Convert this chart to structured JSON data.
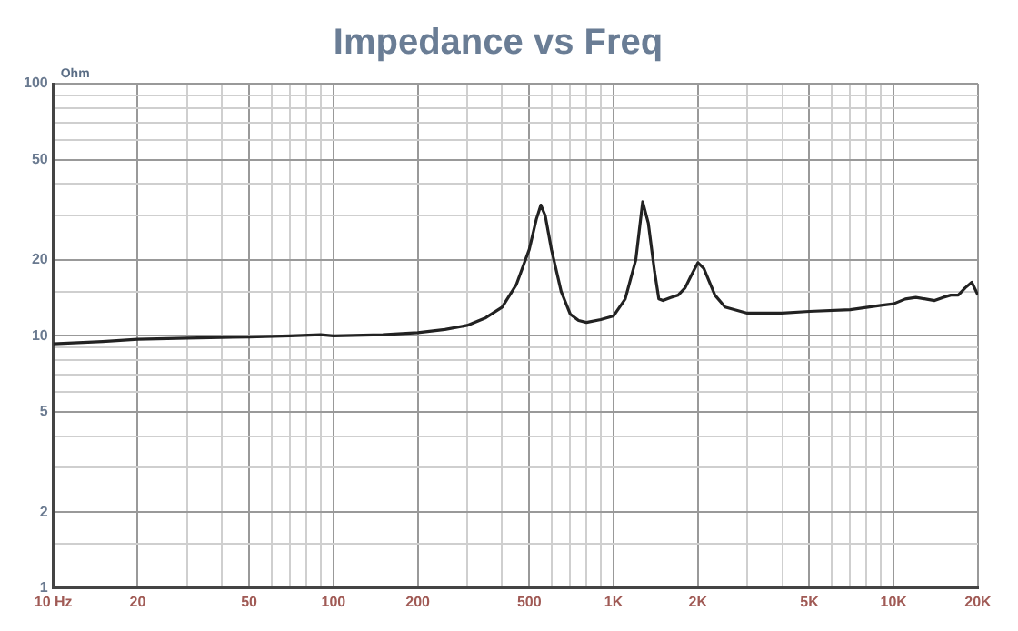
{
  "chart_data": {
    "type": "line",
    "title": "Impedance vs Freq",
    "ylabel": "Ohm",
    "log": "xy",
    "grid": true,
    "legend": false,
    "marker": "none",
    "line_style": "solid",
    "xlim": [
      10,
      20000
    ],
    "ylim": [
      1,
      100
    ],
    "xticks": [
      {
        "value": 10,
        "label": "10 Hz"
      },
      20,
      {
        "value": 30,
        "label": null
      },
      {
        "value": 40,
        "label": null
      },
      50,
      {
        "value": 60,
        "label": null
      },
      {
        "value": 70,
        "label": null
      },
      {
        "value": 80,
        "label": null
      },
      {
        "value": 90,
        "label": null
      },
      100,
      200,
      {
        "value": 300,
        "label": null
      },
      {
        "value": 400,
        "label": null
      },
      500,
      {
        "value": 600,
        "label": null
      },
      {
        "value": 700,
        "label": null
      },
      {
        "value": 800,
        "label": null
      },
      {
        "value": 900,
        "label": null
      },
      {
        "value": 1000,
        "label": "1K"
      },
      {
        "value": 2000,
        "label": "2K"
      },
      {
        "value": 3000,
        "label": null
      },
      {
        "value": 4000,
        "label": null
      },
      {
        "value": 5000,
        "label": "5K"
      },
      {
        "value": 6000,
        "label": null
      },
      {
        "value": 7000,
        "label": null
      },
      {
        "value": 8000,
        "label": null
      },
      {
        "value": 9000,
        "label": null
      },
      {
        "value": 10000,
        "label": "10K"
      },
      {
        "value": 20000,
        "label": "20K"
      }
    ],
    "yticks": [
      1,
      {
        "value": 1.5,
        "label": null
      },
      2,
      {
        "value": 3,
        "label": null
      },
      {
        "value": 4,
        "label": null
      },
      5,
      {
        "value": 6,
        "label": null
      },
      {
        "value": 7,
        "label": null
      },
      {
        "value": 8,
        "label": null
      },
      {
        "value": 9,
        "label": null
      },
      10,
      {
        "value": 15,
        "label": null
      },
      20,
      {
        "value": 30,
        "label": null
      },
      {
        "value": 40,
        "label": null
      },
      50,
      {
        "value": 60,
        "label": null
      },
      {
        "value": 70,
        "label": null
      },
      {
        "value": 80,
        "label": null
      },
      {
        "value": 90,
        "label": null
      },
      100
    ],
    "series": [
      {
        "color": "#222222",
        "x": [
          10,
          15,
          20,
          30,
          50,
          70,
          90,
          100,
          150,
          200,
          250,
          300,
          350,
          400,
          450,
          500,
          530,
          550,
          570,
          600,
          650,
          700,
          750,
          800,
          900,
          1000,
          1100,
          1200,
          1270,
          1330,
          1400,
          1450,
          1500,
          1600,
          1700,
          1800,
          1900,
          2000,
          2100,
          2300,
          2500,
          3000,
          4000,
          5000,
          7000,
          9000,
          10000,
          11000,
          12000,
          13000,
          14000,
          15000,
          16000,
          17000,
          18000,
          19000,
          20000
        ],
        "values": [
          9.3,
          9.5,
          9.7,
          9.8,
          9.9,
          10,
          10.1,
          10,
          10.1,
          10.3,
          10.6,
          11,
          11.8,
          13,
          16,
          22,
          29,
          33,
          30,
          22,
          15,
          12.2,
          11.5,
          11.3,
          11.6,
          12,
          14,
          20,
          34,
          28,
          18,
          14,
          13.8,
          14.2,
          14.5,
          15.5,
          17.5,
          19.5,
          18.5,
          14.5,
          13,
          12.3,
          12.3,
          12.5,
          12.7,
          13.2,
          13.4,
          14,
          14.2,
          14,
          13.8,
          14.2,
          14.5,
          14.5,
          15.5,
          16.3,
          14.5
        ]
      }
    ]
  }
}
